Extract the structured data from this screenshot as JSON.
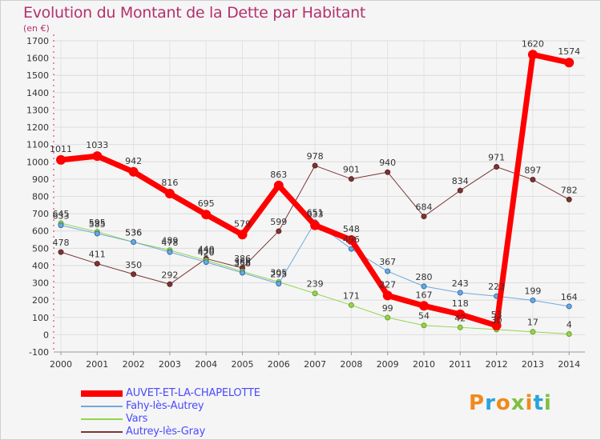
{
  "header": {
    "title": "Evolution du Montant de la Dette par Habitant",
    "subtitle": "(en €)"
  },
  "logo": {
    "text": "Proxiti",
    "colors": [
      "#f08a1d",
      "#29a3dd",
      "#f08a1d",
      "#7fbf3f",
      "#f08a1d",
      "#29a3dd",
      "#7fbf3f"
    ]
  },
  "chart_data": {
    "type": "line",
    "title": "Evolution du Montant de la Dette par Habitant",
    "subtitle": "(en €)",
    "xlabel": "",
    "ylabel": "",
    "x": [
      "2000",
      "2001",
      "2002",
      "2003",
      "2004",
      "2005",
      "2006",
      "2007",
      "2008",
      "2009",
      "2010",
      "2011",
      "2012",
      "2013",
      "2014"
    ],
    "ylim": [
      -100,
      1700
    ],
    "yticks": [
      -100,
      0,
      100,
      200,
      300,
      400,
      500,
      600,
      700,
      800,
      900,
      1000,
      1100,
      1200,
      1300,
      1400,
      1500,
      1600,
      1700
    ],
    "grid": true,
    "legend_position": "bottom-left",
    "series": [
      {
        "name": "AUVET-ET-LA-CHAPELOTTE",
        "color": "#ff0000",
        "width": 7,
        "labels": [
          "1011",
          "1033",
          "942",
          "816",
          "695",
          "579",
          "863",
          "633",
          "548",
          "227",
          "167",
          "118",
          "53",
          "1620",
          "1574"
        ],
        "values": [
          1011,
          1033,
          942,
          816,
          695,
          579,
          863,
          633,
          548,
          227,
          167,
          118,
          53,
          1620,
          1574
        ]
      },
      {
        "name": "Fahy-lès-Autrey",
        "color": "#6fa8dc",
        "width": 1,
        "labels": [
          "633",
          "585",
          "536",
          "478",
          "420",
          "358",
          "295",
          "651",
          "496",
          "367",
          "280",
          "243",
          "223",
          "199",
          "164"
        ],
        "values": [
          633,
          585,
          536,
          478,
          420,
          358,
          295,
          651,
          496,
          367,
          280,
          243,
          223,
          199,
          164
        ]
      },
      {
        "name": "Vars",
        "color": "#93d44c",
        "width": 1,
        "labels": [
          "645",
          "595",
          "536",
          "489",
          "430",
          "366",
          "305",
          "239",
          "171",
          "99",
          "54",
          "42",
          "30",
          "17",
          "4"
        ],
        "values": [
          645,
          595,
          536,
          489,
          430,
          366,
          305,
          239,
          171,
          99,
          54,
          42,
          30,
          17,
          4
        ]
      },
      {
        "name": "Autrey-lès-Gray",
        "color": "#7b3535",
        "width": 1,
        "labels": [
          "478",
          "411",
          "350",
          "292",
          "440",
          "386",
          "599",
          "978",
          "901",
          "940",
          "684",
          "834",
          "971",
          "897",
          "782"
        ],
        "values": [
          478,
          411,
          350,
          292,
          440,
          386,
          599,
          978,
          901,
          940,
          684,
          834,
          971,
          897,
          782
        ]
      }
    ]
  }
}
